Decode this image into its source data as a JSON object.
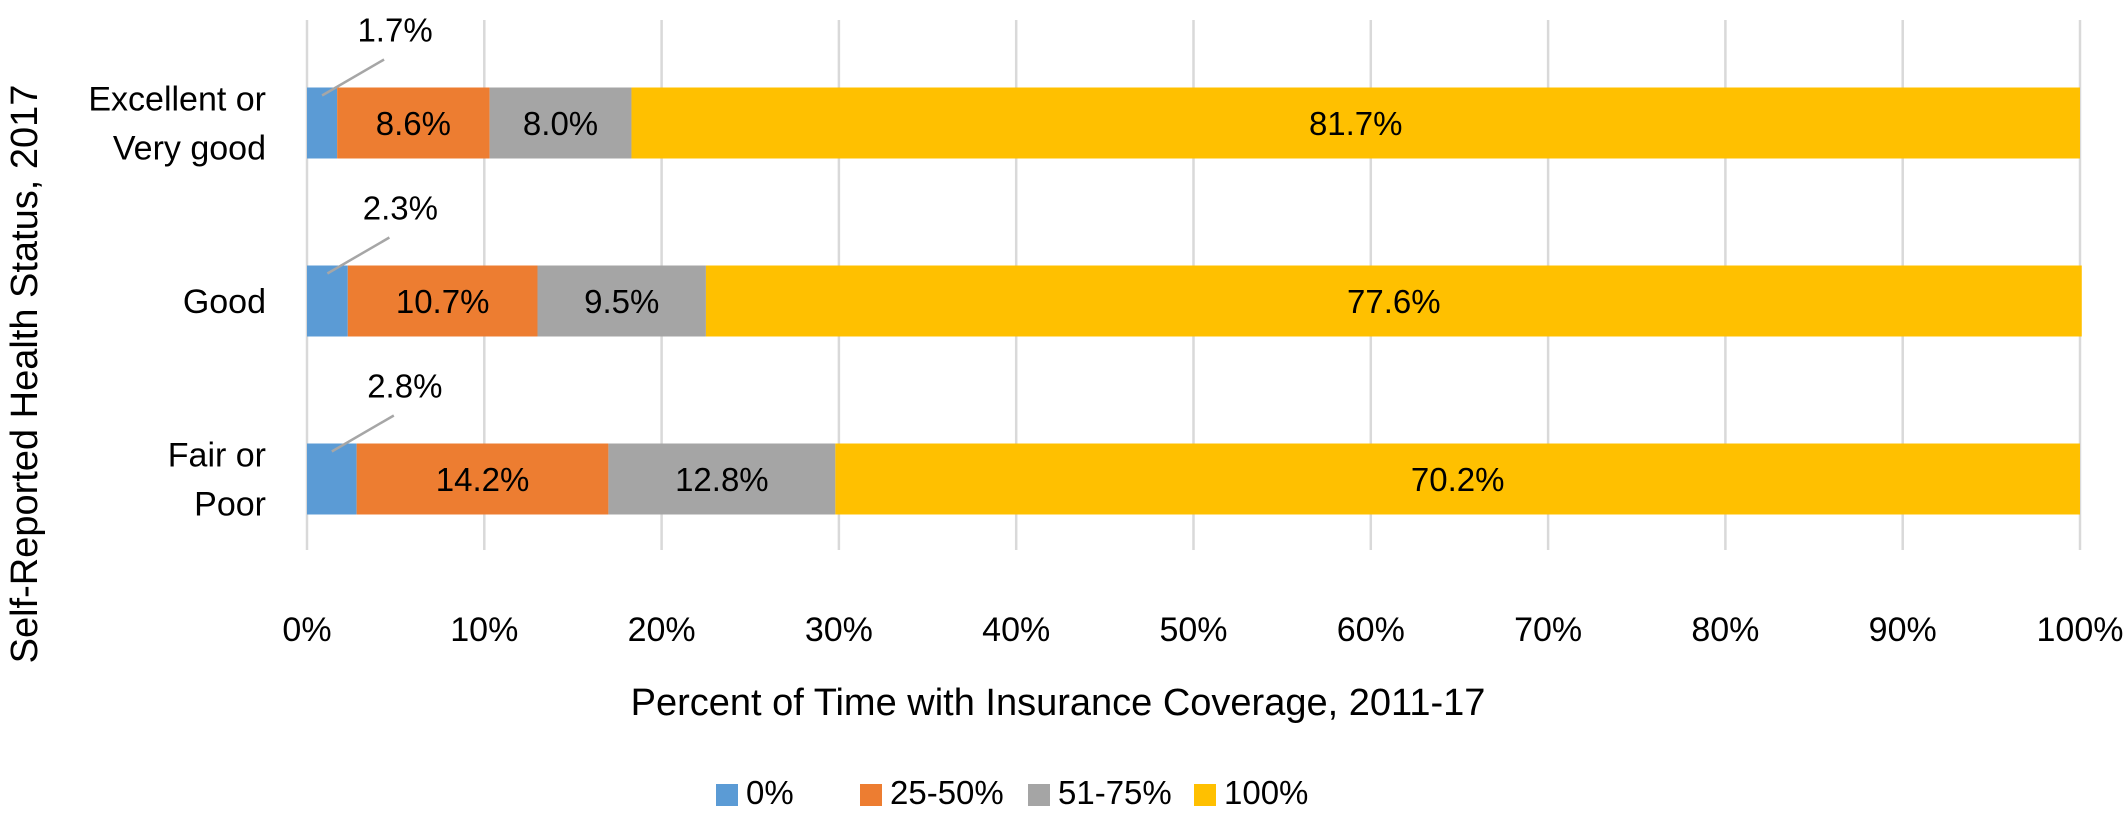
{
  "chart_data": {
    "type": "bar",
    "orientation": "horizontal",
    "stacked": "percent",
    "categories": [
      "Excellent or Very good",
      "Good",
      "Fair or Poor"
    ],
    "category_lines": [
      [
        "Excellent or",
        "Very good"
      ],
      [
        "Good"
      ],
      [
        "Fair or",
        "Poor"
      ]
    ],
    "series": [
      {
        "name": "0%",
        "color": "#5b9bd5",
        "values": [
          1.7,
          2.3,
          2.8
        ],
        "labels": [
          "1.7%",
          "2.3%",
          "2.8%"
        ]
      },
      {
        "name": "25-50%",
        "color": "#ed7d31",
        "values": [
          8.6,
          10.7,
          14.2
        ],
        "labels": [
          "8.6%",
          "10.7%",
          "14.2%"
        ]
      },
      {
        "name": "51-75%",
        "color": "#a5a5a5",
        "values": [
          8.0,
          9.5,
          12.8
        ],
        "labels": [
          "8.0%",
          "9.5%",
          "12.8%"
        ]
      },
      {
        "name": "100%",
        "color": "#ffc000",
        "values": [
          81.7,
          77.6,
          70.2
        ],
        "labels": [
          "81.7%",
          "77.6%",
          "70.2%"
        ]
      }
    ],
    "xlabel": "Percent of Time with Insurance Coverage, 2011-17",
    "ylabel": "Self-Reported Health Status, 2017",
    "xlim": [
      0,
      100
    ],
    "x_ticks": [
      "0%",
      "10%",
      "20%",
      "30%",
      "40%",
      "50%",
      "60%",
      "70%",
      "80%",
      "90%",
      "100%"
    ],
    "grid": "vertical",
    "legend_position": "bottom"
  }
}
